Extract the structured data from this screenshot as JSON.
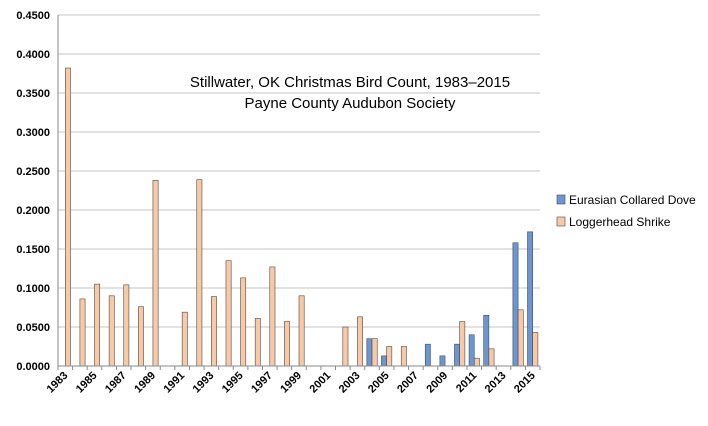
{
  "chart_data": {
    "type": "bar",
    "title": "Stillwater, OK Christmas Bird Count, 1983–2015",
    "subtitle": "Payne County Audubon Society",
    "xlabel": "",
    "ylabel": "",
    "ylim": [
      0,
      0.45
    ],
    "yticks": [
      "0.0000",
      "0.0500",
      "0.1000",
      "0.1500",
      "0.2000",
      "0.2500",
      "0.3000",
      "0.3500",
      "0.4000",
      "0.4500"
    ],
    "grid": true,
    "legend_position": "right",
    "categories": [
      "1983",
      "1984",
      "1985",
      "1986",
      "1987",
      "1988",
      "1989",
      "1990",
      "1991",
      "1992",
      "1993",
      "1994",
      "1995",
      "1996",
      "1997",
      "1998",
      "1999",
      "2000",
      "2001",
      "2002",
      "2003",
      "2004",
      "2005",
      "2006",
      "2007",
      "2008",
      "2009",
      "2010",
      "2011",
      "2012",
      "2013",
      "2014",
      "2015"
    ],
    "x_tick_labels": [
      "1983",
      "1985",
      "1987",
      "1989",
      "1991",
      "1993",
      "1995",
      "1997",
      "1999",
      "2001",
      "2003",
      "2005",
      "2007",
      "2009",
      "2011",
      "2013",
      "2015"
    ],
    "series": [
      {
        "name": "Eurasian Collared Dove",
        "color": "#6a97d3",
        "values": [
          0,
          0,
          0,
          0,
          0,
          0,
          0,
          0,
          0,
          0,
          0,
          0,
          0,
          0,
          0,
          0,
          0,
          0,
          0,
          0,
          0,
          0.035,
          0.013,
          0,
          0,
          0.028,
          0.013,
          0.028,
          0.04,
          0.065,
          0,
          0.158,
          0.172
        ]
      },
      {
        "name": "Loggerhead Shrike",
        "color": "#f9c9a6",
        "values": [
          0.382,
          0.086,
          0.105,
          0.09,
          0.104,
          0.076,
          0.238,
          0,
          0.069,
          0.239,
          0.089,
          0.135,
          0.113,
          0.061,
          0.127,
          0.057,
          0.09,
          0,
          0,
          0.05,
          0.063,
          0.035,
          0.025,
          0.025,
          0,
          0,
          0,
          0.057,
          0.01,
          0.022,
          0,
          0.072,
          0.043
        ]
      }
    ]
  }
}
